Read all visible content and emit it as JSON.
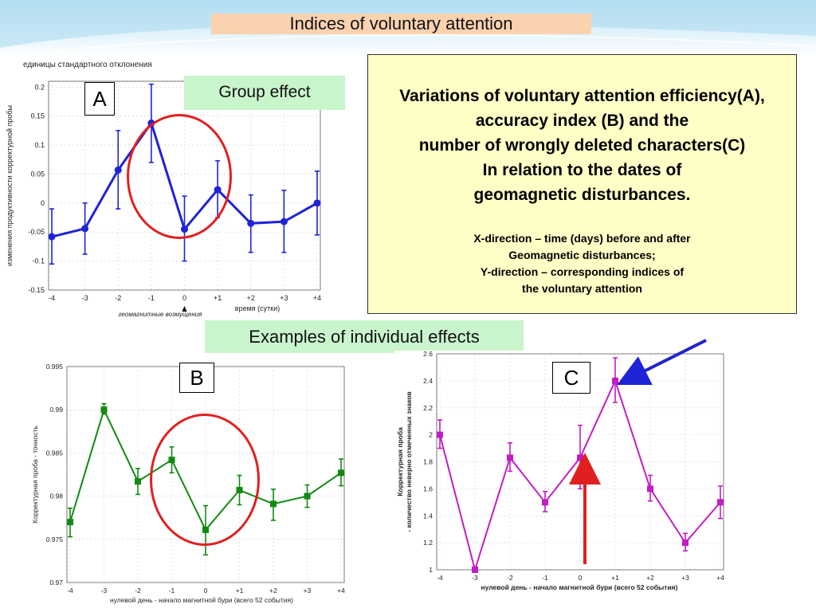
{
  "slide_title": "Indices of voluntary attention",
  "labels": {
    "group_effect": "Group effect",
    "individual_effects": "Examples of individual effects"
  },
  "info_box": {
    "main_lines": [
      "Variations of voluntary attention efficiency(A),",
      "accuracy index (B) and the",
      "number of wrongly deleted characters(C)",
      "In relation to the dates of",
      "geomagnetic disturbances."
    ],
    "note_lines": [
      "X-direction – time (days) before and after",
      "Geomagnetic disturbances;",
      "Y-direction – corresponding indices of",
      "the voluntary attention"
    ]
  },
  "colors": {
    "chart_a": "#1f23d6",
    "chart_b": "#118a11",
    "chart_c": "#c21cc4",
    "highlight": "#e02020",
    "title_bg": "#fbd2b0",
    "label_bg": "#c9f5cc",
    "info_bg": "#fefec6"
  },
  "chart_data": [
    {
      "id": "A",
      "type": "line",
      "panel_letter": "A",
      "title": "единицы стандартного отклонения",
      "xlabel": "время (сутки)",
      "ylabel": "изменения продуктивности корректурной пробы",
      "x_annotation": "геомагнитные возмущения",
      "categories": [
        "-4",
        "-3",
        "-2",
        "-1",
        "0",
        "+1",
        "+2",
        "+3",
        "+4"
      ],
      "yticks": [
        -0.15,
        -0.1,
        -0.05,
        0,
        0.05,
        0.1,
        0.15,
        0.2
      ],
      "ytick_labels": [
        "-0.15",
        "-0.1",
        "-0.05",
        "0",
        "0.05",
        "0.1",
        "0.15",
        "0.2"
      ],
      "ylim": [
        -0.15,
        0.21
      ],
      "values": [
        -0.058,
        -0.044,
        0.057,
        0.138,
        -0.045,
        0.023,
        -0.035,
        -0.032,
        0.0
      ],
      "err_low": [
        -0.105,
        -0.088,
        -0.01,
        0.07,
        -0.1,
        -0.025,
        -0.085,
        -0.085,
        -0.055
      ],
      "err_high": [
        -0.01,
        0.0,
        0.125,
        0.205,
        0.012,
        0.073,
        0.014,
        0.022,
        0.055
      ],
      "marker": "circle",
      "highlight_ellipse": true,
      "grid": true
    },
    {
      "id": "B",
      "type": "line",
      "panel_letter": "B",
      "title": "",
      "xlabel": "нулевой день - начало магнитной бури (всего 52 события)",
      "ylabel": "Корректурная проба - точность",
      "categories": [
        "-4",
        "-3",
        "-2",
        "-1",
        "0",
        "+1",
        "+2",
        "+3",
        "+4"
      ],
      "yticks": [
        0.97,
        0.975,
        0.98,
        0.985,
        0.99,
        0.995
      ],
      "ytick_labels": [
        "0.97",
        "0.975",
        "0.98",
        "0.985",
        "0.99",
        "0.995"
      ],
      "ylim": [
        0.97,
        0.995
      ],
      "values": [
        0.977,
        0.99,
        0.9817,
        0.9842,
        0.9761,
        0.9807,
        0.9791,
        0.98,
        0.9827
      ],
      "err_low": [
        0.9753,
        0.9895,
        0.9802,
        0.9827,
        0.9732,
        0.979,
        0.9772,
        0.9787,
        0.9812
      ],
      "err_high": [
        0.9786,
        0.9907,
        0.9832,
        0.9857,
        0.9789,
        0.9824,
        0.9808,
        0.9813,
        0.9843
      ],
      "marker": "square",
      "highlight_ellipse": true,
      "grid": true
    },
    {
      "id": "C",
      "type": "line",
      "panel_letter": "C",
      "title": "",
      "xlabel": "нулевой день - начало магнитной бури (всего 52 события)",
      "ylabel": "Корректурная проба - количество неверно отмеченных знаков",
      "categories": [
        "-4",
        "-3",
        "-2",
        "-1",
        "0",
        "+1",
        "+2",
        "+3",
        "+4"
      ],
      "yticks": [
        1,
        1.2,
        1.4,
        1.6,
        1.8,
        2,
        2.2,
        2.4,
        2.6
      ],
      "ytick_labels": [
        "1",
        "1.2",
        "1.4",
        "1.6",
        "1.8",
        "2",
        "2.2",
        "2.4",
        "2.6"
      ],
      "ylim": [
        1,
        2.6
      ],
      "values": [
        2.0,
        1.0,
        1.83,
        1.5,
        1.83,
        2.4,
        1.6,
        1.2,
        1.5
      ],
      "err_low": [
        1.9,
        1.0,
        1.73,
        1.43,
        1.6,
        2.24,
        1.51,
        1.14,
        1.38
      ],
      "err_high": [
        2.11,
        1.0,
        1.94,
        1.58,
        2.07,
        2.57,
        1.7,
        1.27,
        1.62
      ],
      "marker": "square",
      "arrows": [
        "red-up-at-0",
        "blue-pointing-at-+1"
      ],
      "grid": true
    }
  ]
}
